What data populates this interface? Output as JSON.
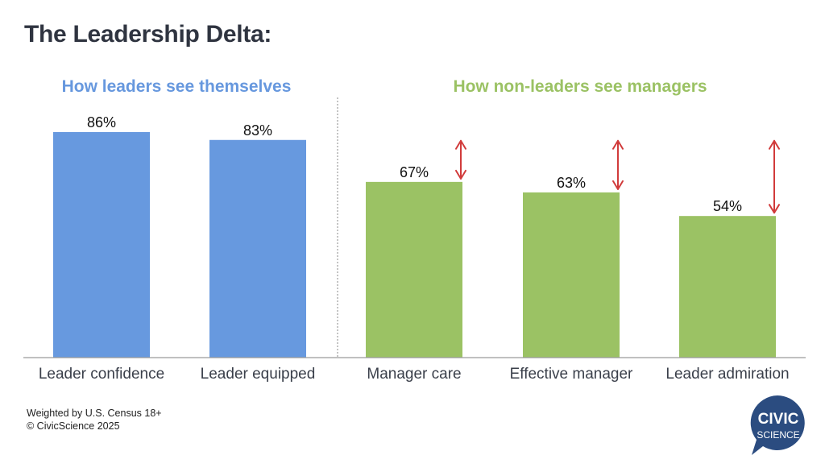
{
  "title": "The Leadership Delta:",
  "groups": {
    "left_label": "How leaders see themselves",
    "right_label": "How non-leaders see managers"
  },
  "colors": {
    "leaders": "#6799df",
    "non_leaders": "#9bc264",
    "arrow": "#d13b3b",
    "title": "#2f3440"
  },
  "chart_data": {
    "type": "bar",
    "title": "The Leadership Delta:",
    "xlabel": "",
    "ylabel": "",
    "ylim": [
      0,
      100
    ],
    "grid": false,
    "categories": [
      "Leader confidence",
      "Leader equipped",
      "Manager care",
      "Effective manager",
      "Leader admiration"
    ],
    "values": [
      86,
      83,
      67,
      63,
      54
    ],
    "value_labels": [
      "86%",
      "83%",
      "67%",
      "63%",
      "54%"
    ],
    "groups": [
      {
        "name": "How leaders see themselves",
        "categories": [
          "Leader confidence",
          "Leader equipped"
        ]
      },
      {
        "name": "How non-leaders see managers",
        "categories": [
          "Manager care",
          "Effective manager",
          "Leader admiration"
        ]
      }
    ],
    "annotations": {
      "type": "gap-arrows",
      "reference_value": 83,
      "applies_to": [
        "Manager care",
        "Effective manager",
        "Leader admiration"
      ]
    }
  },
  "footnote": {
    "line1": "Weighted by U.S. Census 18+",
    "line2": "© CivicScience 2025"
  },
  "logo": {
    "line1": "CIVIC",
    "line2": "SCIENCE",
    "color": "#2b4c80"
  }
}
